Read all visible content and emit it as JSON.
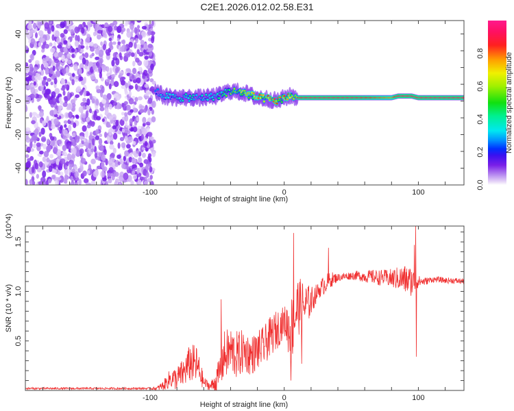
{
  "title": "C2E1.2026.012.02.58.E31",
  "colorbar": {
    "label": "Normalized spectral amplitude",
    "ticks": [
      "0.0",
      "0.2",
      "0.4",
      "0.6",
      "0.8"
    ],
    "range": [
      0,
      1
    ]
  },
  "chart_data": [
    {
      "type": "heatmap",
      "name": "spectrogram",
      "xlabel": "Height of straight line (km)",
      "ylabel": "Frequency (Hz)",
      "xlim": [
        -193,
        134
      ],
      "ylim": [
        -50,
        48
      ],
      "xticks": [
        "-100",
        "0",
        "100"
      ],
      "xtick_values": [
        -100,
        0,
        100
      ],
      "yticks": [
        "40",
        "20",
        "0",
        "-20",
        "-40"
      ],
      "ytick_values": [
        40,
        20,
        0,
        -20,
        -40
      ],
      "noise_region_km": [
        -193,
        -97
      ],
      "ridge": {
        "x": [
          -96,
          -90,
          -80,
          -70,
          -60,
          -50,
          -40,
          -30,
          -20,
          -10,
          -5,
          0,
          5,
          10,
          20,
          50,
          80,
          85,
          95,
          100,
          134
        ],
        "freq_hz": [
          6,
          3,
          2,
          2,
          2,
          3,
          6,
          5,
          2,
          1,
          0,
          2,
          3,
          2,
          2,
          2,
          2,
          3,
          3,
          2,
          2
        ],
        "amplitude": [
          0.3,
          0.35,
          0.4,
          0.4,
          0.35,
          0.45,
          0.6,
          0.75,
          0.85,
          0.85,
          0.9,
          0.8,
          0.85,
          0.9,
          0.95,
          0.95,
          0.8,
          0.95,
          0.95,
          0.95,
          0.95
        ]
      }
    },
    {
      "type": "line",
      "name": "snr",
      "xlabel": "Height of straight line (km)",
      "ylabel": "SNR (10 * v/v)",
      "yscale_label": "(x10^4)",
      "xlim": [
        -193,
        134
      ],
      "ylim": [
        0,
        1.66
      ],
      "xticks": [
        "-100",
        "0",
        "100"
      ],
      "xtick_values": [
        -100,
        0,
        100
      ],
      "yticks": [
        "0.5",
        "1.0",
        "1.5"
      ],
      "ytick_values": [
        0.5,
        1.0,
        1.5
      ],
      "color": "#f03030",
      "x": [
        -193,
        -180,
        -160,
        -140,
        -120,
        -100,
        -95,
        -90,
        -85,
        -80,
        -75,
        -70,
        -65,
        -60,
        -55,
        -50,
        -45,
        -40,
        -35,
        -30,
        -25,
        -20,
        -15,
        -10,
        -5,
        0,
        5,
        10,
        15,
        20,
        25,
        30,
        35,
        40,
        45,
        50,
        55,
        60,
        65,
        70,
        75,
        80,
        85,
        90,
        95,
        100,
        105,
        110,
        115,
        120,
        125,
        134
      ],
      "y": [
        0.02,
        0.02,
        0.02,
        0.02,
        0.02,
        0.02,
        0.02,
        0.05,
        0.12,
        0.12,
        0.18,
        0.28,
        0.25,
        0.08,
        0.04,
        0.1,
        0.35,
        0.4,
        0.35,
        0.4,
        0.35,
        0.4,
        0.45,
        0.55,
        0.62,
        0.7,
        0.6,
        0.85,
        0.85,
        0.9,
        1.0,
        1.07,
        1.12,
        1.14,
        1.15,
        1.16,
        1.16,
        1.15,
        1.15,
        1.14,
        1.14,
        1.13,
        1.13,
        1.12,
        1.1,
        1.1,
        1.1,
        1.12,
        1.12,
        1.11,
        1.11,
        1.1
      ],
      "noise": [
        0.01,
        0.01,
        0.01,
        0.01,
        0.01,
        0.01,
        0.02,
        0.05,
        0.1,
        0.12,
        0.15,
        0.2,
        0.2,
        0.06,
        0.04,
        0.15,
        0.25,
        0.25,
        0.25,
        0.22,
        0.2,
        0.2,
        0.2,
        0.2,
        0.2,
        0.15,
        0.35,
        0.3,
        0.25,
        0.15,
        0.08,
        0.1,
        0.08,
        0.04,
        0.04,
        0.04,
        0.05,
        0.06,
        0.07,
        0.08,
        0.08,
        0.1,
        0.12,
        0.15,
        0.15,
        0.06,
        0.04,
        0.03,
        0.03,
        0.03,
        0.03,
        0.03
      ],
      "spikes": [
        {
          "x": 7,
          "y": 1.59
        },
        {
          "x": 5,
          "y": 0.1
        },
        {
          "x": 33,
          "y": 1.44
        },
        {
          "x": 98,
          "y": 1.66
        },
        {
          "x": 98.5,
          "y": 0.34
        },
        {
          "x": 13,
          "y": 0.27
        },
        {
          "x": -47,
          "y": 0.92
        },
        {
          "x": 97,
          "y": 1.47
        }
      ]
    }
  ]
}
